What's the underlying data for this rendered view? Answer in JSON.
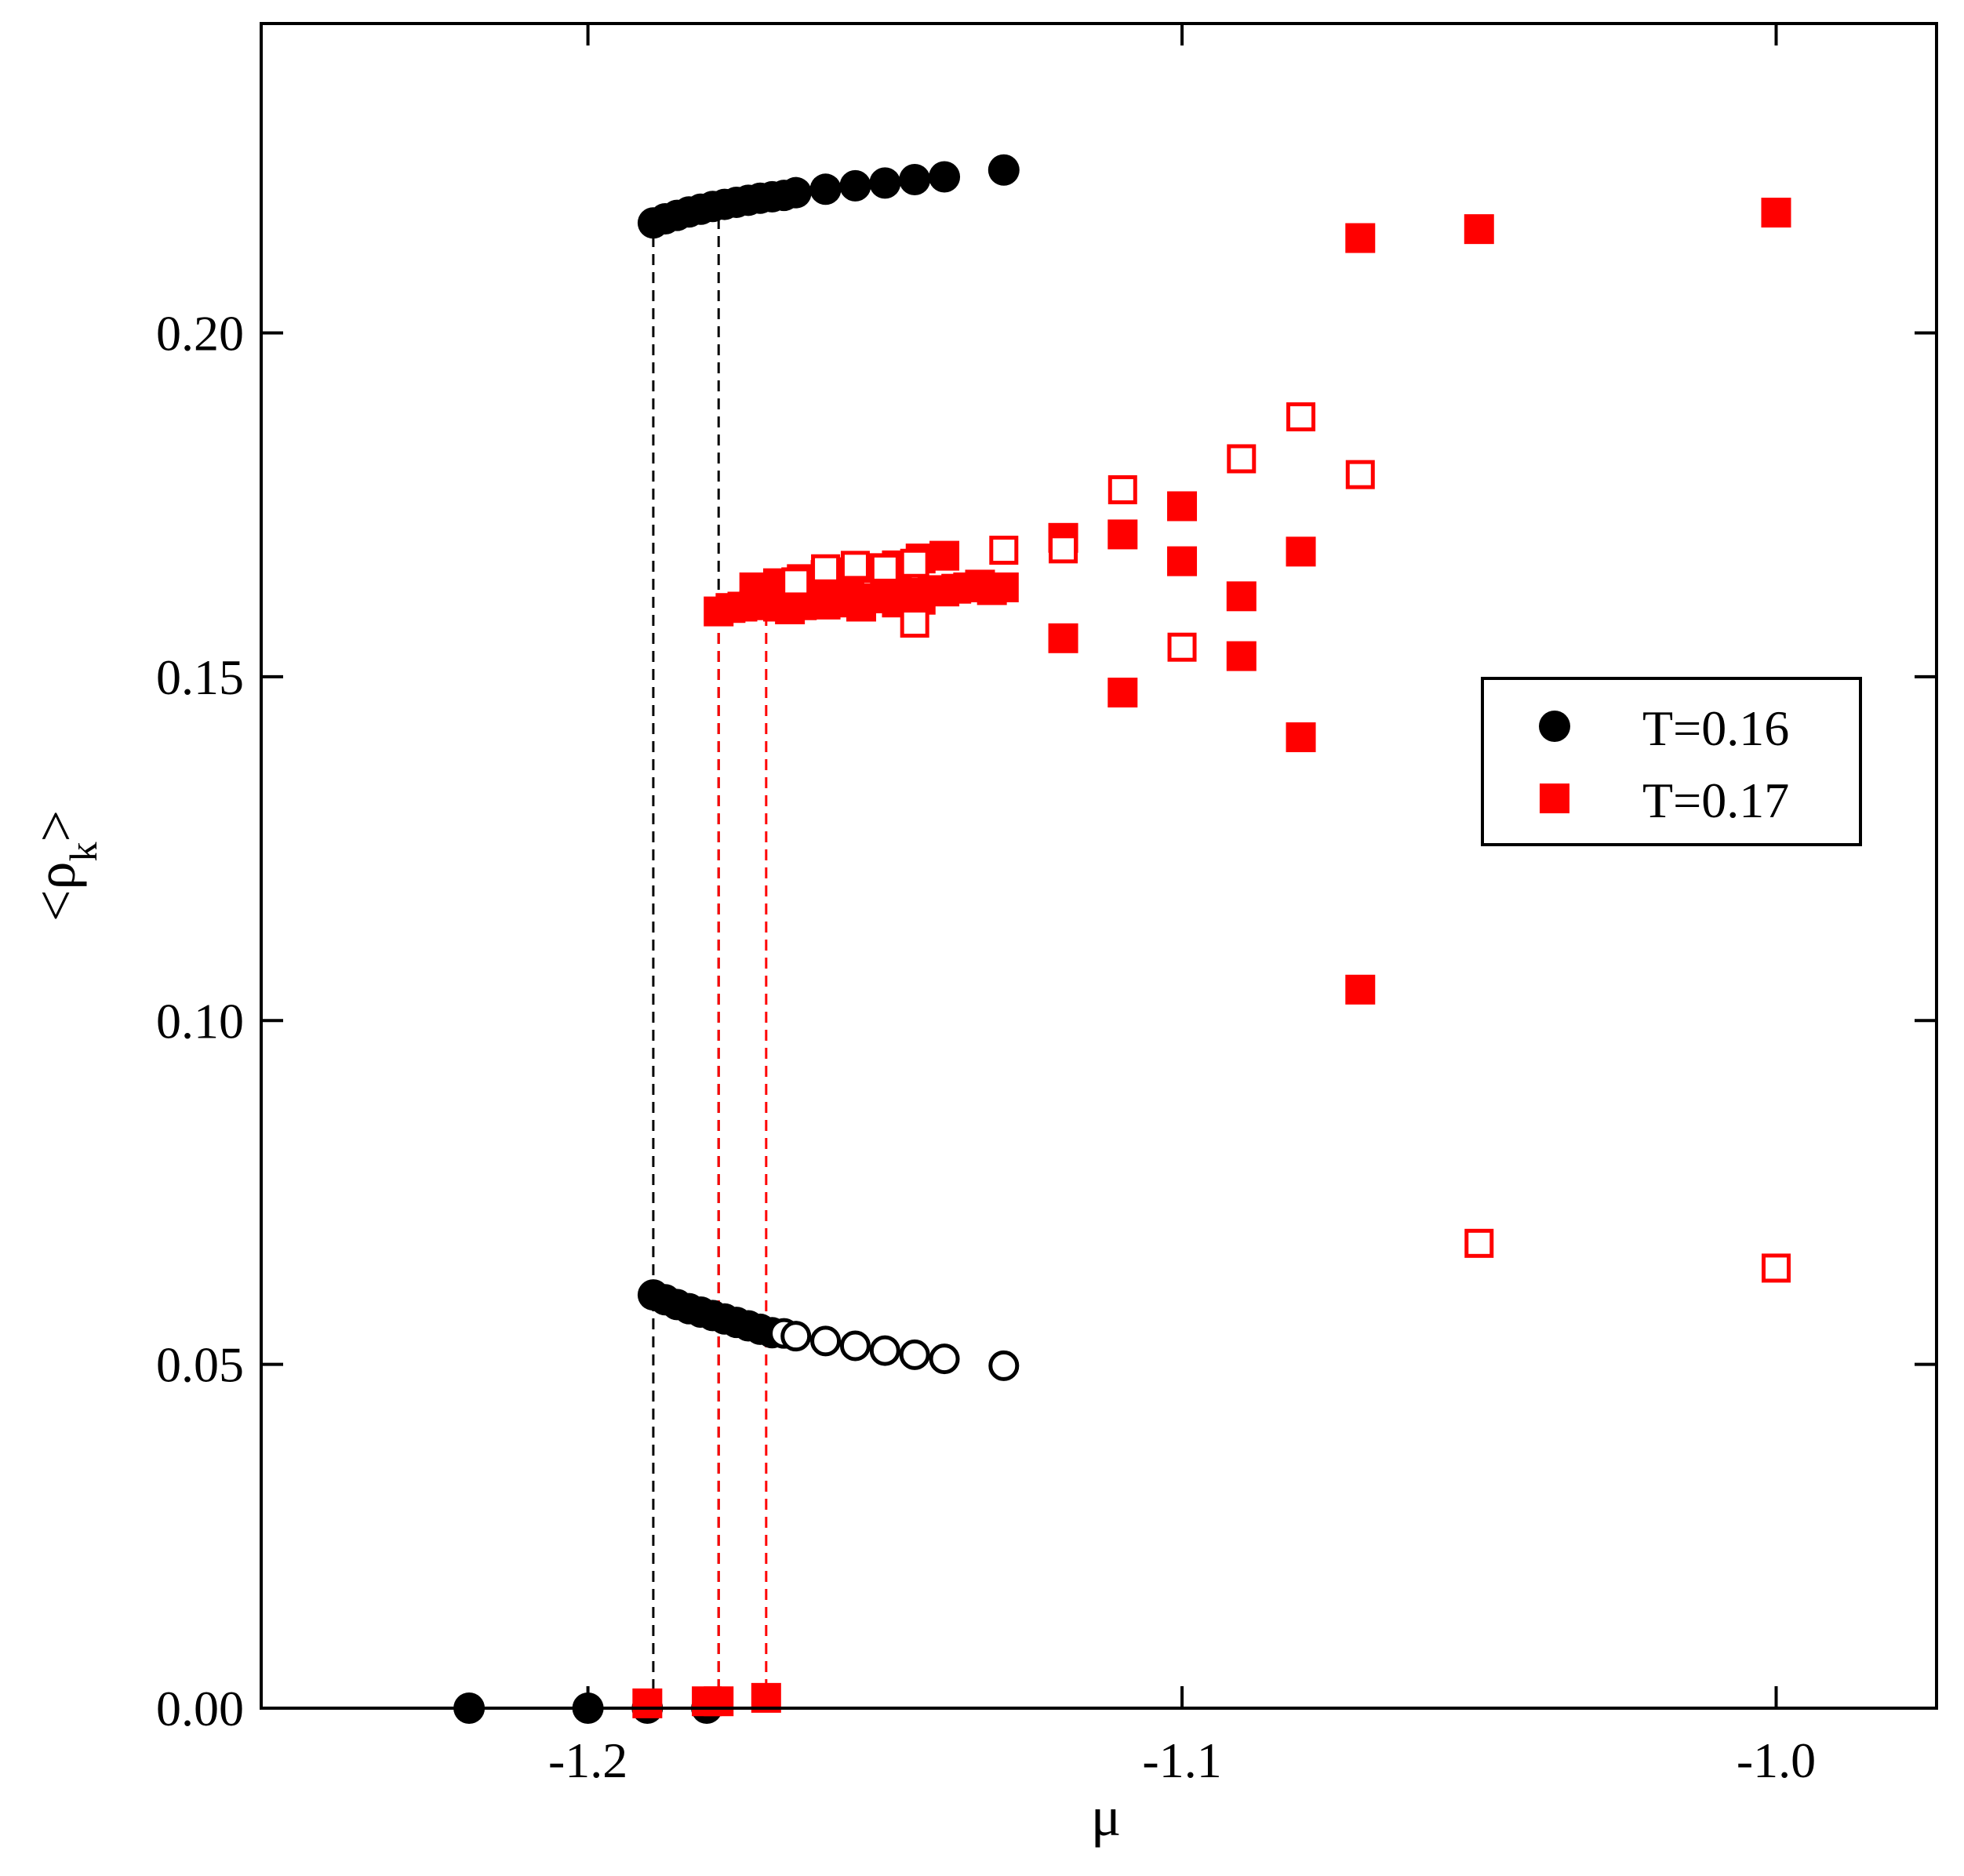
{
  "chart_data": {
    "type": "scatter",
    "xlabel": "μ",
    "ylabel_main": "<ρ",
    "ylabel_sub": "k",
    "ylabel_close": ">",
    "xlim": [
      -1.255,
      -0.973
    ],
    "ylim": [
      0.0,
      0.245
    ],
    "x_ticks": [
      -1.2,
      -1.1,
      -1.0
    ],
    "x_tick_labels": [
      "-1.2",
      "-1.1",
      "-1.0"
    ],
    "y_ticks": [
      0.0,
      0.05,
      0.1,
      0.15,
      0.2
    ],
    "y_tick_labels": [
      "0.00",
      "0.05",
      "0.10",
      "0.15",
      "0.20"
    ],
    "colors": {
      "T016": "#000000",
      "T017": "#ff0000"
    },
    "legend": {
      "placement": "right",
      "entries": [
        {
          "label": "T=0.16",
          "marker": "circle",
          "color": "#000000"
        },
        {
          "label": "T=0.17",
          "marker": "square",
          "color": "#ff0000"
        }
      ]
    },
    "series": [
      {
        "name": "T=0.16 filled",
        "marker": "circle",
        "filled": true,
        "color": "#000000",
        "points": [
          [
            -1.22,
            0.0
          ],
          [
            -1.2,
            0.0
          ],
          [
            -1.19,
            0.0
          ],
          [
            -1.18,
            0.0
          ],
          [
            -1.189,
            0.216
          ],
          [
            -1.187,
            0.2166
          ],
          [
            -1.185,
            0.2171
          ],
          [
            -1.183,
            0.2176
          ],
          [
            -1.181,
            0.218
          ],
          [
            -1.179,
            0.2184
          ],
          [
            -1.177,
            0.2187
          ],
          [
            -1.175,
            0.219
          ],
          [
            -1.173,
            0.2193
          ],
          [
            -1.171,
            0.2196
          ],
          [
            -1.169,
            0.2198
          ],
          [
            -1.167,
            0.22
          ],
          [
            -1.165,
            0.2204
          ],
          [
            -1.16,
            0.2209
          ],
          [
            -1.155,
            0.2214
          ],
          [
            -1.15,
            0.2218
          ],
          [
            -1.145,
            0.2223
          ],
          [
            -1.14,
            0.2227
          ],
          [
            -1.13,
            0.2237
          ],
          [
            -1.189,
            0.0601
          ],
          [
            -1.187,
            0.0594
          ],
          [
            -1.185,
            0.0587
          ],
          [
            -1.183,
            0.0581
          ],
          [
            -1.181,
            0.0576
          ],
          [
            -1.179,
            0.0571
          ],
          [
            -1.177,
            0.0566
          ],
          [
            -1.175,
            0.0561
          ],
          [
            -1.173,
            0.0556
          ],
          [
            -1.171,
            0.0551
          ],
          [
            -1.169,
            0.0546
          ]
        ]
      },
      {
        "name": "T=0.16 open",
        "marker": "circle",
        "filled": false,
        "color": "#000000",
        "points": [
          [
            -1.167,
            0.0545
          ],
          [
            -1.165,
            0.0541
          ],
          [
            -1.16,
            0.0534
          ],
          [
            -1.155,
            0.0527
          ],
          [
            -1.15,
            0.052
          ],
          [
            -1.145,
            0.0514
          ],
          [
            -1.14,
            0.0508
          ],
          [
            -1.13,
            0.0498
          ]
        ]
      },
      {
        "name": "T=0.17 filled",
        "marker": "square",
        "filled": true,
        "color": "#ff0000",
        "points": [
          [
            -1.19,
            0.0007
          ],
          [
            -1.18,
            0.001
          ],
          [
            -1.178,
            0.001
          ],
          [
            -1.17,
            0.0015
          ],
          [
            -1.178,
            0.1595
          ],
          [
            -1.176,
            0.16
          ],
          [
            -1.174,
            0.1602
          ],
          [
            -1.172,
            0.1604
          ],
          [
            -1.17,
            0.1606
          ],
          [
            -1.168,
            0.1602
          ],
          [
            -1.166,
            0.1598
          ],
          [
            -1.164,
            0.1604
          ],
          [
            -1.162,
            0.161
          ],
          [
            -1.16,
            0.1605
          ],
          [
            -1.158,
            0.1608
          ],
          [
            -1.156,
            0.1612
          ],
          [
            -1.154,
            0.1602
          ],
          [
            -1.152,
            0.1614
          ],
          [
            -1.15,
            0.1618
          ],
          [
            -1.148,
            0.1608
          ],
          [
            -1.146,
            0.1622
          ],
          [
            -1.144,
            0.1612
          ],
          [
            -1.142,
            0.1626
          ],
          [
            -1.14,
            0.1624
          ],
          [
            -1.138,
            0.1628
          ],
          [
            -1.136,
            0.163
          ],
          [
            -1.134,
            0.1634
          ],
          [
            -1.132,
            0.1626
          ],
          [
            -1.13,
            0.163
          ],
          [
            -1.172,
            0.163
          ],
          [
            -1.168,
            0.1636
          ],
          [
            -1.164,
            0.1642
          ],
          [
            -1.16,
            0.1648
          ],
          [
            -1.156,
            0.1652
          ],
          [
            -1.152,
            0.1658
          ],
          [
            -1.148,
            0.1662
          ],
          [
            -1.144,
            0.1672
          ],
          [
            -1.14,
            0.1676
          ],
          [
            -1.12,
            0.1702
          ],
          [
            -1.12,
            0.1556
          ],
          [
            -1.11,
            0.1707
          ],
          [
            -1.11,
            0.1477
          ],
          [
            -1.1,
            0.1748
          ],
          [
            -1.1,
            0.1668
          ],
          [
            -1.09,
            0.1617
          ],
          [
            -1.09,
            0.153
          ],
          [
            -1.08,
            0.1682
          ],
          [
            -1.08,
            0.1412
          ],
          [
            -1.07,
            0.2138
          ],
          [
            -1.07,
            0.1045
          ],
          [
            -1.05,
            0.2151
          ],
          [
            -1.0,
            0.2175
          ]
        ]
      },
      {
        "name": "T=0.17 open",
        "marker": "square",
        "filled": false,
        "color": "#ff0000",
        "points": [
          [
            -1.165,
            0.1638
          ],
          [
            -1.16,
            0.1657
          ],
          [
            -1.155,
            0.1662
          ],
          [
            -1.15,
            0.1658
          ],
          [
            -1.145,
            0.1665
          ],
          [
            -1.145,
            0.1578
          ],
          [
            -1.13,
            0.1684
          ],
          [
            -1.12,
            0.1686
          ],
          [
            -1.11,
            0.1772
          ],
          [
            -1.1,
            0.1543
          ],
          [
            -1.09,
            0.1817
          ],
          [
            -1.08,
            0.1878
          ],
          [
            -1.07,
            0.1794
          ],
          [
            -1.05,
            0.0676
          ],
          [
            -1.0,
            0.064
          ]
        ]
      }
    ],
    "reference_lines": [
      {
        "color": "#000000",
        "x": -1.189,
        "y_range": [
          0.0,
          0.216
        ]
      },
      {
        "color": "#000000",
        "x": -1.178,
        "y_range": [
          0.0,
          0.2187
        ]
      },
      {
        "color": "#ff0000",
        "x": -1.178,
        "y_range": [
          0.0,
          0.1595
        ]
      },
      {
        "color": "#ff0000",
        "x": -1.17,
        "y_range": [
          0.0,
          0.1595
        ]
      }
    ]
  }
}
